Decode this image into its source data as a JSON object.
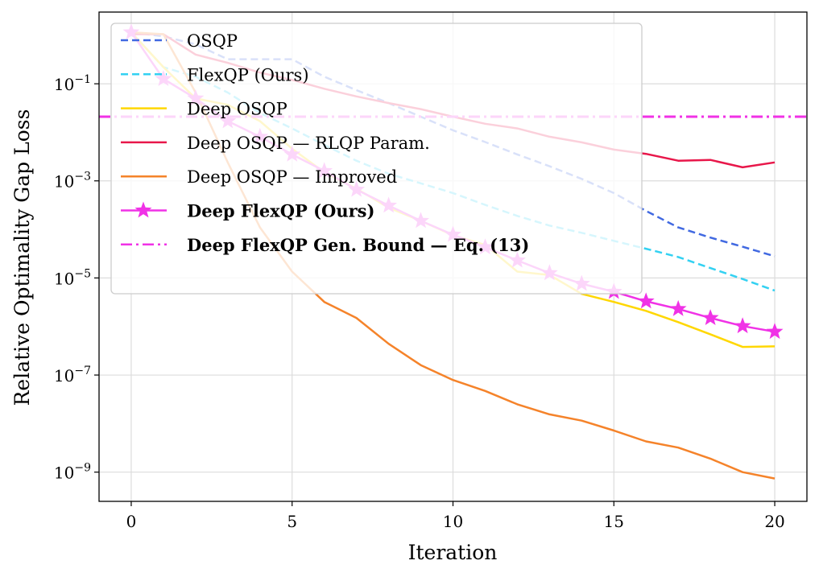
{
  "chart_data": {
    "type": "line",
    "title": "",
    "xlabel": "Iteration",
    "ylabel": "Relative Optimality Gap Loss",
    "xlim": [
      -1,
      21
    ],
    "ylim": [
      2.5e-10,
      3.0
    ],
    "yscale": "log",
    "grid": true,
    "legend_placement": "upper-left",
    "x_ticks": [
      0,
      5,
      10,
      15,
      20
    ],
    "y_ticks": [
      {
        "base": "10",
        "exp": "−1",
        "value": 0.1
      },
      {
        "base": "10",
        "exp": "−3",
        "value": 0.001
      },
      {
        "base": "10",
        "exp": "−5",
        "value": 1e-05
      },
      {
        "base": "10",
        "exp": "−7",
        "value": 1e-07
      },
      {
        "base": "10",
        "exp": "−9",
        "value": 1e-09
      }
    ],
    "x": [
      0,
      1,
      2,
      3,
      4,
      5,
      6,
      7,
      8,
      9,
      10,
      11,
      12,
      13,
      14,
      15,
      16,
      17,
      18,
      19,
      20
    ],
    "series": [
      {
        "name": "OSQP",
        "color": "#4169e1",
        "style": "dashed",
        "bold": false,
        "marker": "none",
        "values": [
          1.15,
          0.95,
          0.65,
          0.32,
          0.32,
          0.32,
          0.14,
          0.074,
          0.04,
          0.021,
          0.011,
          0.0063,
          0.0035,
          0.002,
          0.0011,
          0.00056,
          0.00024,
          0.00011,
          6.8e-05,
          4.4e-05,
          2.8e-05
        ]
      },
      {
        "name": "FlexQP (Ours)",
        "color": "#33d1f2",
        "style": "dashed",
        "bold": false,
        "marker": "none",
        "values": [
          1.15,
          0.22,
          0.14,
          0.066,
          0.025,
          0.012,
          0.0055,
          0.0026,
          0.0014,
          0.00089,
          0.00056,
          0.00032,
          0.00019,
          0.00012,
          8.5e-05,
          5.8e-05,
          4e-05,
          2.7e-05,
          1.6e-05,
          9.5e-06,
          5.5e-06
        ]
      },
      {
        "name": "Deep OSQP",
        "color": "#ffd700",
        "style": "solid",
        "bold": false,
        "marker": "none",
        "values": [
          1.15,
          0.22,
          0.05,
          0.037,
          0.017,
          0.0046,
          0.0015,
          0.00069,
          0.00028,
          0.00015,
          7.6e-05,
          4.8e-05,
          1.35e-05,
          1.15e-05,
          4.7e-06,
          3.2e-06,
          2.1e-06,
          1.23e-06,
          6.9e-07,
          3.8e-07,
          3.9e-07
        ]
      },
      {
        "name": "Deep OSQP — RLQP Param.",
        "color": "#e8174a",
        "style": "solid",
        "bold": false,
        "marker": "none",
        "values": [
          1.05,
          1.05,
          0.4,
          0.27,
          0.17,
          0.12,
          0.079,
          0.055,
          0.04,
          0.03,
          0.021,
          0.015,
          0.012,
          0.0081,
          0.0062,
          0.0044,
          0.0036,
          0.0026,
          0.0027,
          0.0019,
          0.0024
        ]
      },
      {
        "name": "Deep OSQP — Improved",
        "color": "#f5832a",
        "style": "solid",
        "bold": false,
        "marker": "none",
        "values": [
          1.15,
          1.05,
          0.066,
          0.0024,
          0.00011,
          1.35e-05,
          3.2e-06,
          1.5e-06,
          4.4e-07,
          1.6e-07,
          7.9e-08,
          4.7e-08,
          2.5e-08,
          1.55e-08,
          1.15e-08,
          7.2e-09,
          4.3e-09,
          3.2e-09,
          1.9e-09,
          1e-09,
          7.4e-10
        ]
      },
      {
        "name": "Deep FlexQP (Ours)",
        "color": "#f032e6",
        "style": "solid",
        "bold": true,
        "marker": "star",
        "values": [
          1.15,
          0.126,
          0.05,
          0.017,
          0.0081,
          0.0035,
          0.0016,
          0.00066,
          0.00031,
          0.00015,
          7.8e-05,
          4.3e-05,
          2.3e-05,
          1.26e-05,
          7.6e-06,
          5.2e-06,
          3.3e-06,
          2.3e-06,
          1.5e-06,
          1.02e-06,
          7.8e-07
        ]
      },
      {
        "name": "Deep FlexQP Gen. Bound — Eq. (13)",
        "color": "#f032e6",
        "style": "dashdot",
        "bold": true,
        "marker": "none",
        "horizontal": 0.021
      }
    ]
  }
}
